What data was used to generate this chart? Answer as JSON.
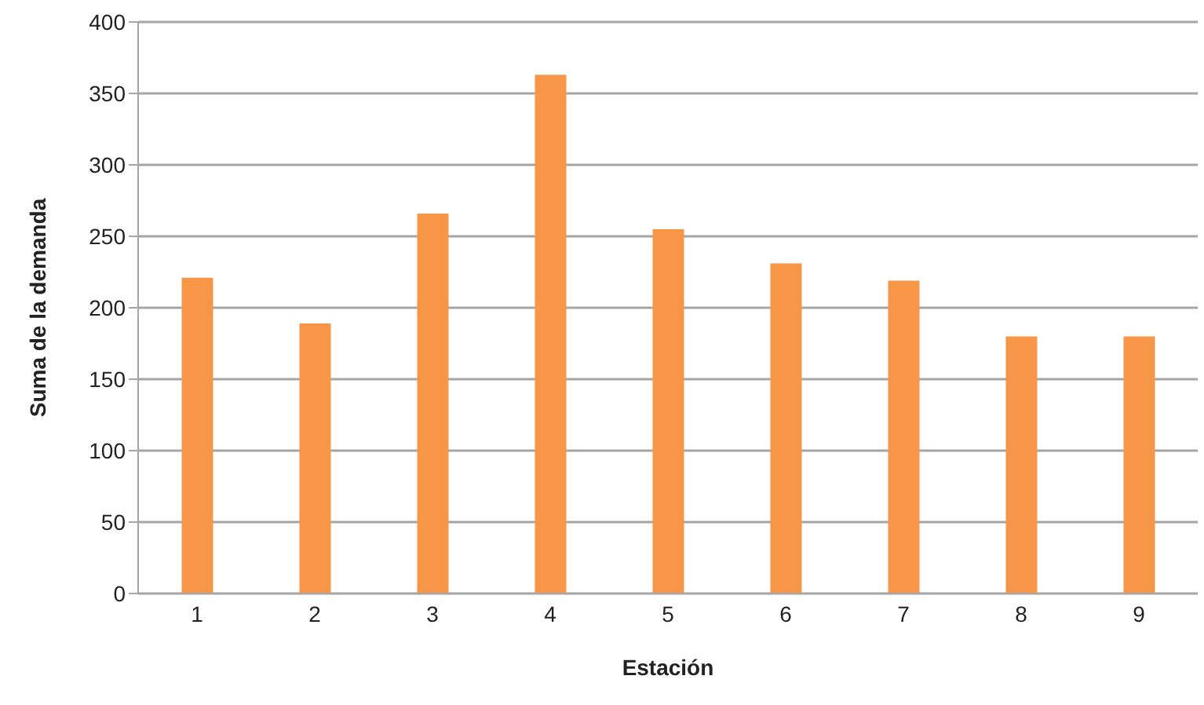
{
  "chart_data": {
    "type": "bar",
    "xlabel": "Estación",
    "ylabel": "Suma de la demanda",
    "categories": [
      "1",
      "2",
      "3",
      "4",
      "5",
      "6",
      "7",
      "8",
      "9"
    ],
    "values": [
      221,
      189,
      266,
      363,
      255,
      231,
      219,
      180,
      180
    ],
    "color": "#f79646",
    "ylim": [
      0,
      400
    ],
    "yticks": [
      0,
      50,
      100,
      150,
      200,
      250,
      300,
      350,
      400
    ],
    "grid": "y"
  }
}
